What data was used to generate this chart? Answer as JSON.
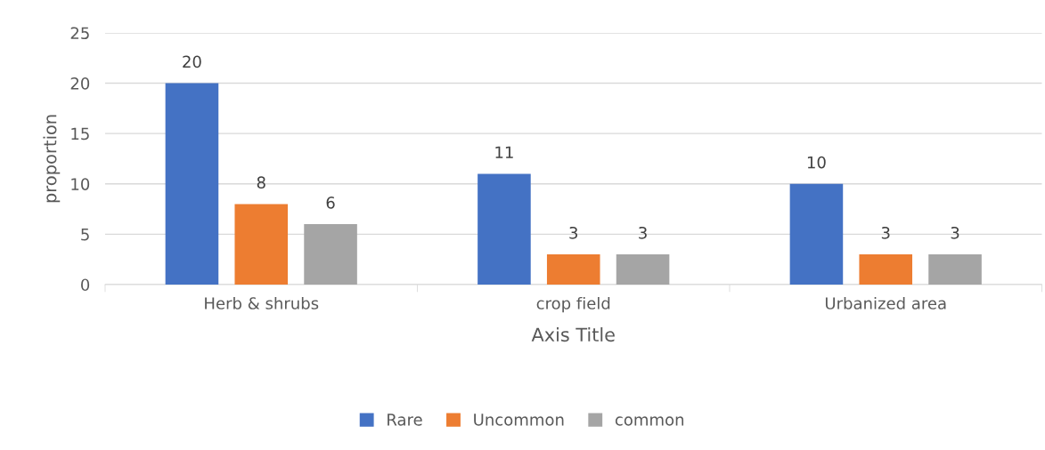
{
  "chart_data": {
    "type": "bar",
    "xlabel": "Axis Title",
    "ylabel": "proportion",
    "categories": [
      "Herb & shrubs",
      "crop field",
      "Urbanized area"
    ],
    "series": [
      {
        "name": "Rare",
        "color": "#4472c4",
        "values": [
          20,
          11,
          10
        ]
      },
      {
        "name": "Uncommon",
        "color": "#ed7d31",
        "values": [
          8,
          3,
          3
        ]
      },
      {
        "name": "common",
        "color": "#a5a5a5",
        "values": [
          6,
          3,
          3
        ]
      }
    ],
    "ylim": [
      0,
      25
    ],
    "yticks": [
      0,
      5,
      10,
      15,
      20,
      25
    ],
    "grid": "y",
    "legend": "bottom",
    "data_labels": true
  }
}
